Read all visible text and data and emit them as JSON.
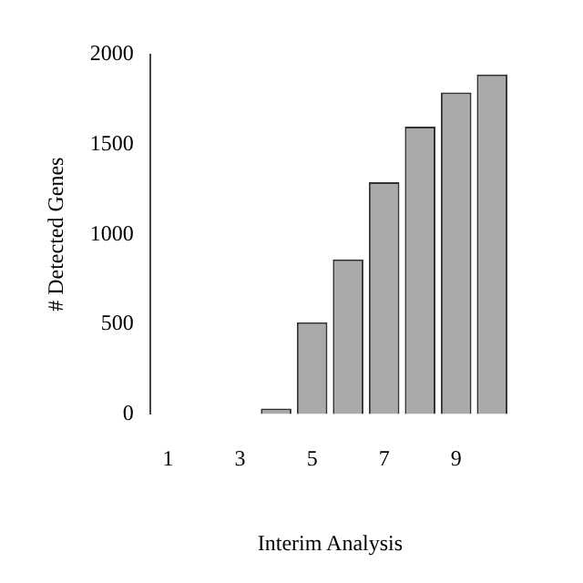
{
  "chart_data": {
    "type": "bar",
    "xlabel": "Interim Analysis",
    "ylabel": "# Detected Genes",
    "categories": [
      "1",
      null,
      "3",
      null,
      "5",
      null,
      "7",
      null,
      "9",
      null
    ],
    "values": [
      0,
      0,
      0,
      30,
      510,
      860,
      1290,
      1600,
      1790,
      1890
    ],
    "color": "#aaaaaa",
    "ylim": [
      0,
      2000
    ],
    "yticks": [
      0,
      500,
      1000,
      1500,
      2000
    ],
    "grid": false,
    "legend": false
  }
}
